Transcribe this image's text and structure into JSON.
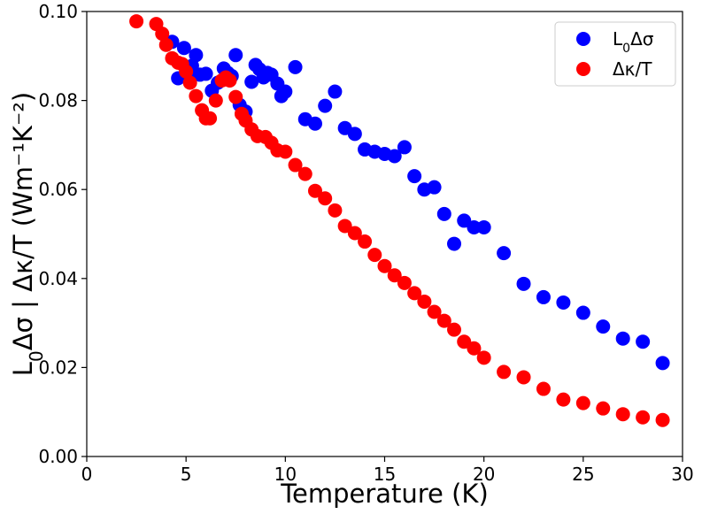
{
  "chart_data": {
    "type": "scatter",
    "title": "",
    "xlabel": "Temperature (K)",
    "ylabel": "L₀Δσ | Δκ/T (Wm⁻¹K⁻²)",
    "xlim": [
      0,
      30
    ],
    "ylim": [
      0,
      0.1
    ],
    "xticks": [
      "0",
      "5",
      "10",
      "15",
      "20",
      "25",
      "30"
    ],
    "yticks": [
      "0.00",
      "0.02",
      "0.04",
      "0.06",
      "0.08",
      "0.10"
    ],
    "grid": false,
    "legend_position": "top-right",
    "series": [
      {
        "name": "L₀Δσ",
        "color": "#0000ff",
        "x": [
          4.3,
          4.6,
          4.9,
          5.1,
          5.3,
          5.5,
          5.7,
          6.0,
          6.3,
          6.6,
          6.9,
          7.1,
          7.3,
          7.5,
          7.7,
          8.0,
          8.3,
          8.5,
          8.7,
          8.9,
          9.1,
          9.3,
          9.6,
          9.8,
          10.0,
          10.5,
          11.0,
          11.5,
          12.0,
          12.5,
          13.0,
          13.5,
          14.0,
          14.5,
          15.0,
          15.5,
          16.0,
          16.5,
          17.0,
          17.5,
          18.0,
          18.5,
          19.0,
          19.5,
          20.0,
          21.0,
          22.0,
          23.0,
          24.0,
          25.0,
          26.0,
          27.0,
          28.0,
          29.0
        ],
        "y": [
          0.0932,
          0.085,
          0.0918,
          0.086,
          0.0878,
          0.0902,
          0.0858,
          0.086,
          0.0822,
          0.084,
          0.0872,
          0.0862,
          0.0855,
          0.0902,
          0.079,
          0.0775,
          0.0842,
          0.088,
          0.087,
          0.0852,
          0.0862,
          0.0858,
          0.0838,
          0.081,
          0.082,
          0.0875,
          0.0758,
          0.0748,
          0.0788,
          0.082,
          0.0738,
          0.0725,
          0.069,
          0.0685,
          0.068,
          0.0675,
          0.0695,
          0.063,
          0.06,
          0.0605,
          0.0545,
          0.0478,
          0.053,
          0.0515,
          0.0515,
          0.0457,
          0.0388,
          0.0358,
          0.0346,
          0.0323,
          0.0292,
          0.0265,
          0.0258,
          0.021
        ]
      },
      {
        "name": "Δκ/T",
        "color": "#ff0000",
        "x": [
          2.5,
          3.5,
          3.8,
          4.0,
          4.3,
          4.6,
          4.8,
          5.0,
          5.2,
          5.5,
          5.8,
          6.0,
          6.2,
          6.5,
          6.8,
          7.0,
          7.2,
          7.5,
          7.8,
          8.0,
          8.3,
          8.6,
          9.0,
          9.3,
          9.6,
          10.0,
          10.5,
          11.0,
          11.5,
          12.0,
          12.5,
          13.0,
          13.5,
          14.0,
          14.5,
          15.0,
          15.5,
          16.0,
          16.5,
          17.0,
          17.5,
          18.0,
          18.5,
          19.0,
          19.5,
          20.0,
          21.0,
          22.0,
          23.0,
          24.0,
          25.0,
          26.0,
          27.0,
          28.0,
          29.0
        ],
        "y": [
          0.0978,
          0.0972,
          0.095,
          0.0925,
          0.0895,
          0.0885,
          0.0882,
          0.0865,
          0.084,
          0.081,
          0.0778,
          0.076,
          0.076,
          0.08,
          0.0845,
          0.0852,
          0.0845,
          0.0808,
          0.077,
          0.0755,
          0.0735,
          0.072,
          0.0718,
          0.0705,
          0.0688,
          0.0685,
          0.0655,
          0.0635,
          0.0597,
          0.058,
          0.0553,
          0.0518,
          0.0502,
          0.0483,
          0.0453,
          0.0428,
          0.0407,
          0.039,
          0.0367,
          0.0348,
          0.0325,
          0.0305,
          0.0285,
          0.0258,
          0.0243,
          0.0222,
          0.019,
          0.0178,
          0.0152,
          0.0128,
          0.012,
          0.0108,
          0.0095,
          0.0088,
          0.0082
        ]
      }
    ]
  }
}
